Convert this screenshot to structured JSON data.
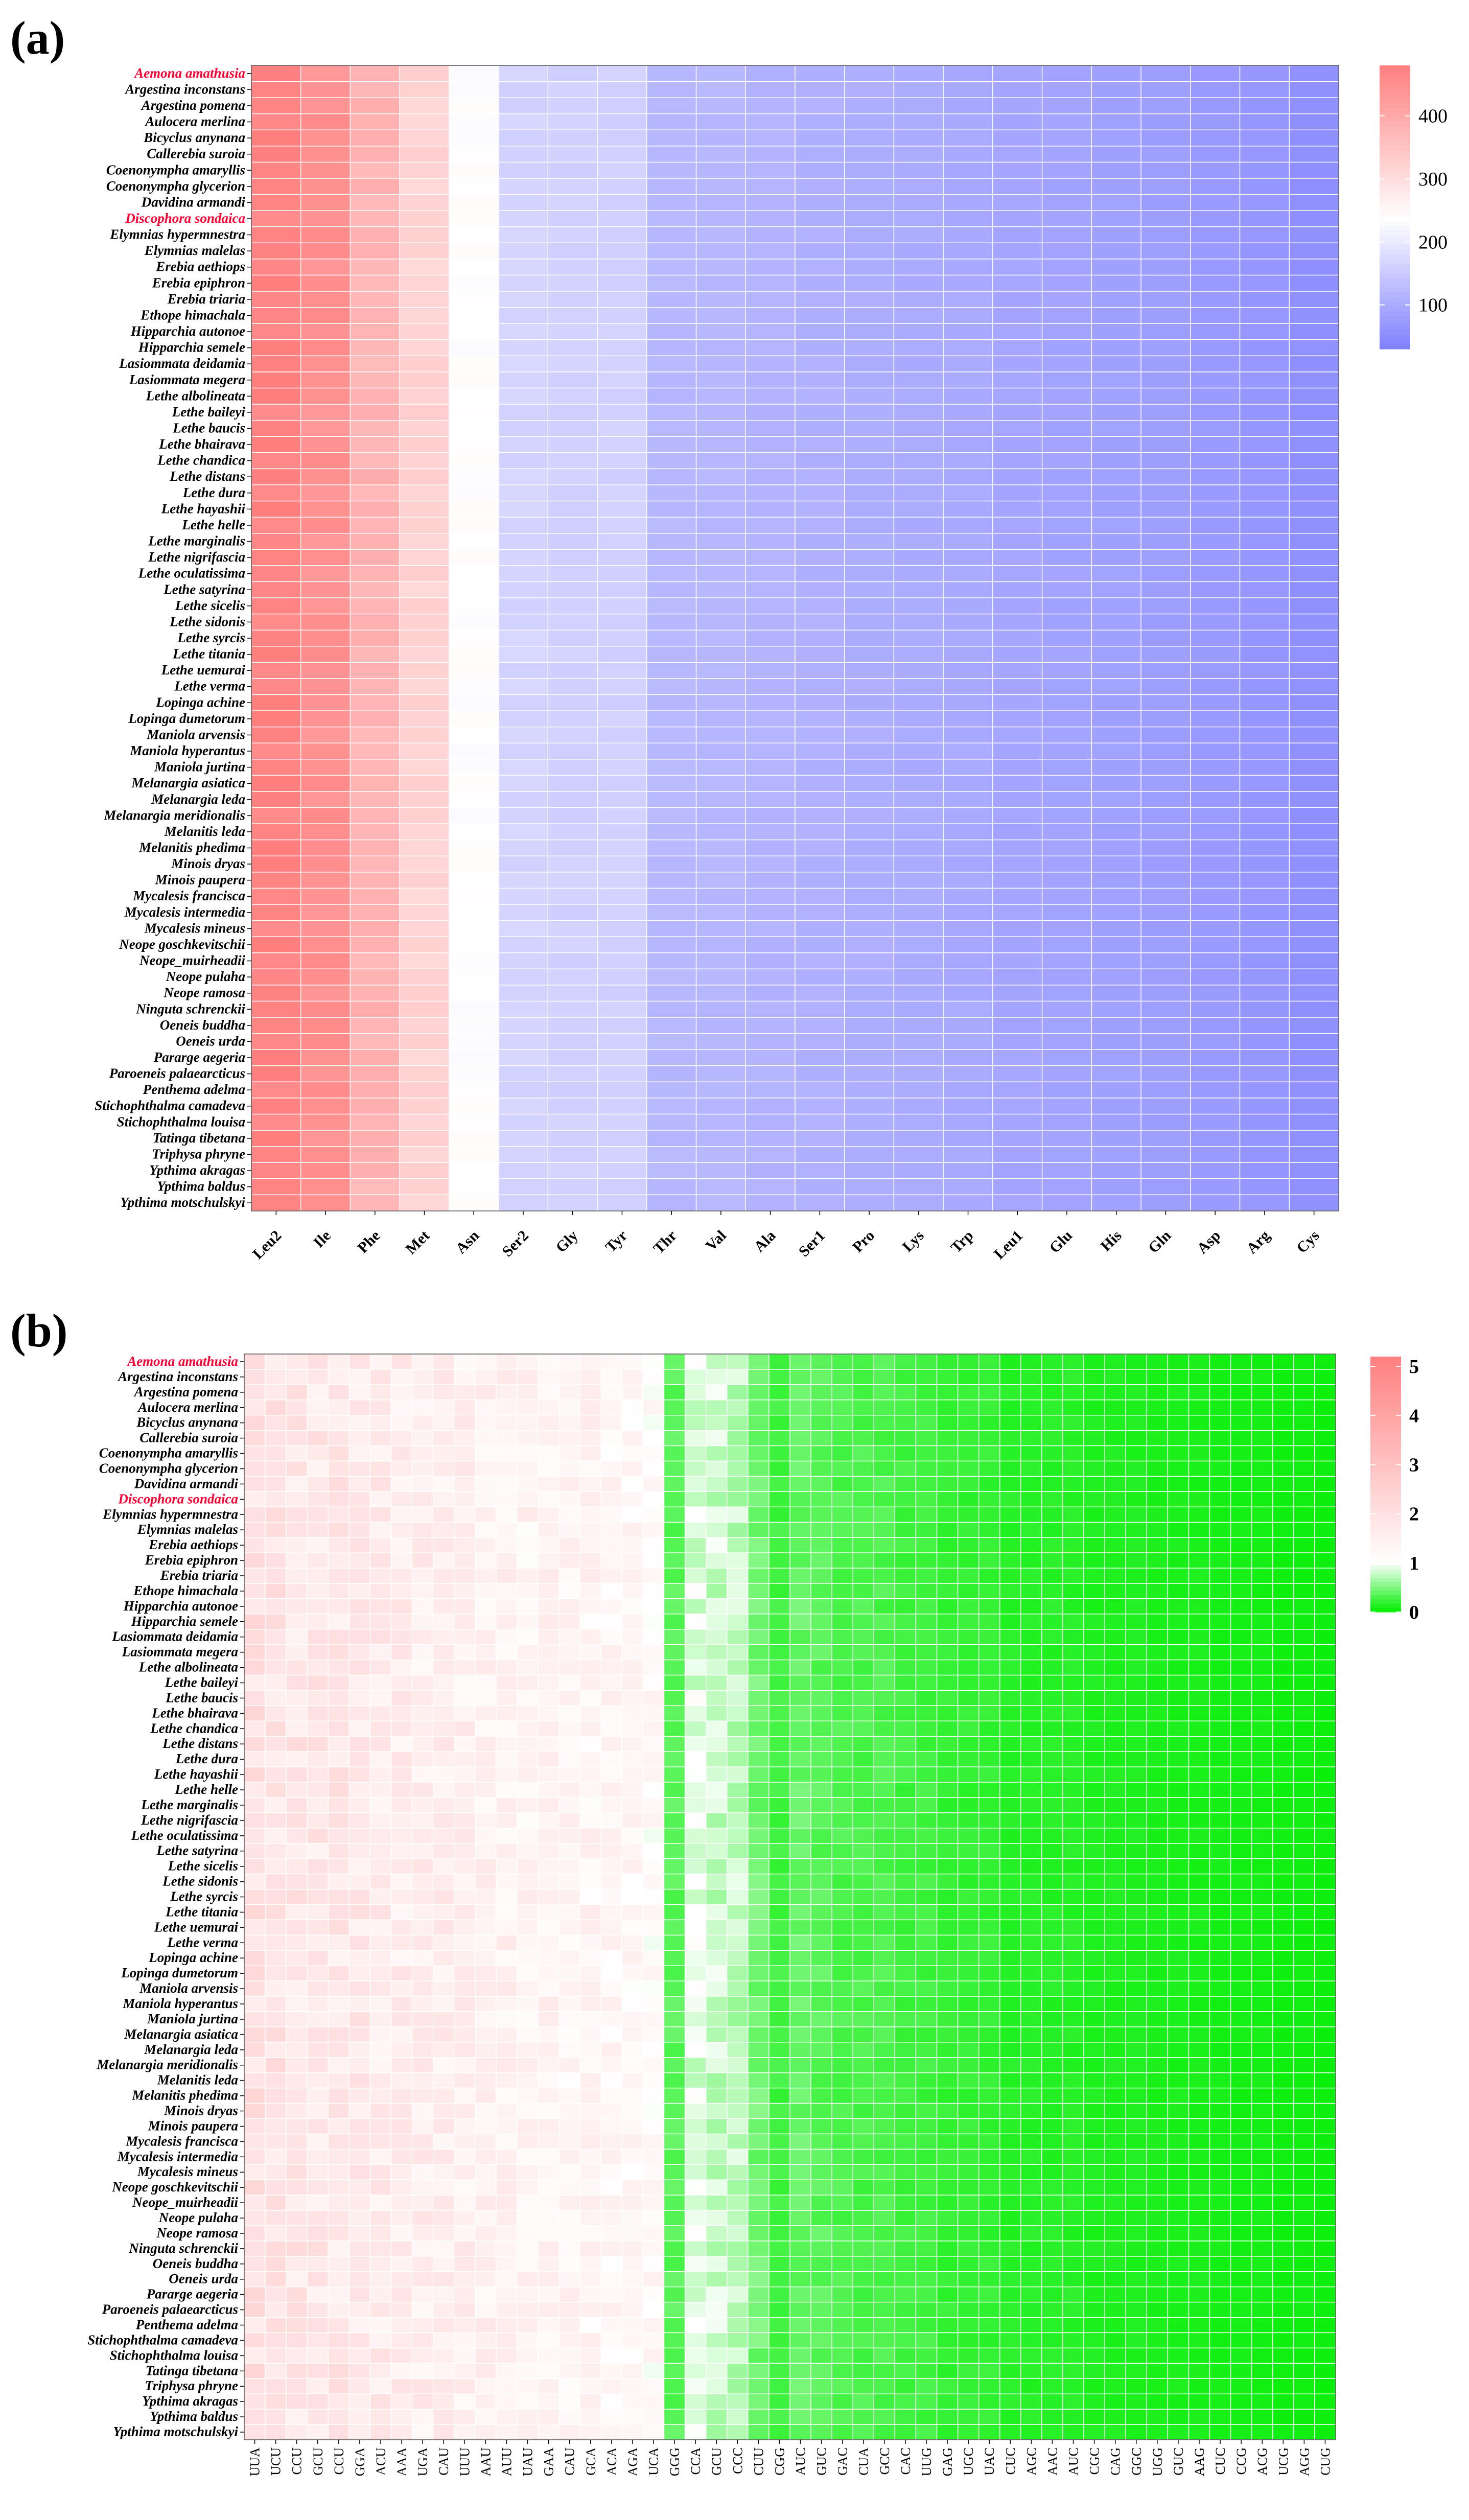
{
  "chart_data": [
    {
      "panel": "(a)",
      "type": "heatmap",
      "title": "",
      "xlabel": "",
      "ylabel": "",
      "columns": [
        "Leu2",
        "Ile",
        "Phe",
        "Met",
        "Asn",
        "Ser2",
        "Gly",
        "Tyr",
        "Thr",
        "Val",
        "Ala",
        "Ser1",
        "Pro",
        "Lys",
        "Trp",
        "Leu1",
        "Glu",
        "His",
        "Gln",
        "Asp",
        "Arg",
        "Cys"
      ],
      "highlighted_species": [
        "Aemona amathusia",
        "Discophora sondaica"
      ],
      "column_profile_values": [
        470,
        445,
        380,
        320,
        235,
        165,
        160,
        160,
        120,
        118,
        112,
        108,
        104,
        100,
        96,
        90,
        86,
        82,
        78,
        72,
        66,
        56
      ],
      "colorbar": {
        "ticks": [
          100,
          200,
          300,
          400
        ],
        "min": 30,
        "max": 480,
        "low_color": "#8080ff",
        "mid_color": "#ffffff",
        "high_color": "#ff7f7f"
      }
    },
    {
      "panel": "(b)",
      "type": "heatmap",
      "title": "",
      "xlabel": "",
      "ylabel": "",
      "columns": [
        "UUA",
        "UCU",
        "CCU",
        "GCU",
        "CCU",
        "GGA",
        "ACU",
        "AAA",
        "UGA",
        "CAU",
        "UUU",
        "AAU",
        "AUU",
        "UAU",
        "GAA",
        "CAU",
        "GCA",
        "ACA",
        "AGA",
        "UCA",
        "GGG",
        "CCA",
        "GCU",
        "CCC",
        "CUU",
        "CGG",
        "AUC",
        "GUC",
        "GAC",
        "CUA",
        "GCC",
        "CAC",
        "UUG",
        "GAG",
        "UGC",
        "UAC",
        "CUC",
        "AGC",
        "AAC",
        "AUC",
        "CGC",
        "CAG",
        "GGC",
        "UGG",
        "GUC",
        "AAG",
        "CUC",
        "CCG",
        "ACG",
        "UCG",
        "AGG",
        "CUG"
      ],
      "highlighted_species": [
        "Aemona amathusia",
        "Discophora sondaica"
      ],
      "column_profile_values": [
        1.95,
        1.85,
        1.8,
        1.75,
        1.75,
        1.7,
        1.65,
        1.6,
        1.55,
        1.55,
        1.5,
        1.45,
        1.45,
        1.4,
        1.4,
        1.35,
        1.35,
        1.3,
        1.25,
        1.2,
        0.35,
        0.9,
        0.8,
        0.75,
        0.45,
        0.25,
        0.4,
        0.35,
        0.3,
        0.3,
        0.3,
        0.25,
        0.25,
        0.2,
        0.2,
        0.2,
        0.15,
        0.15,
        0.15,
        0.15,
        0.12,
        0.12,
        0.12,
        0.1,
        0.1,
        0.1,
        0.08,
        0.08,
        0.08,
        0.06,
        0.06,
        0.05
      ],
      "colorbar": {
        "ticks": [
          0,
          1,
          2,
          3,
          4,
          5
        ],
        "min": 0,
        "max": 5.2,
        "low_color": "#00ee00",
        "mid_color": "#ffffff",
        "high_color": "#ff7f7f"
      }
    }
  ],
  "species": [
    "Aemona amathusia",
    "Argestina inconstans",
    "Argestina pomena",
    "Aulocera merlina",
    "Bicyclus anynana",
    "Callerebia suroia",
    "Coenonympha amaryllis",
    "Coenonympha glycerion",
    "Davidina armandi",
    "Discophora sondaica",
    "Elymnias hypermnestra",
    "Elymnias malelas",
    "Erebia aethiops",
    "Erebia epiphron",
    "Erebia triaria",
    "Ethope himachala",
    "Hipparchia autonoe",
    "Hipparchia semele",
    "Lasiommata deidamia",
    "Lasiommata megera",
    "Lethe albolineata",
    "Lethe baileyi",
    "Lethe baucis",
    "Lethe bhairava",
    "Lethe chandica",
    "Lethe distans",
    "Lethe dura",
    "Lethe hayashii",
    "Lethe helle",
    "Lethe marginalis",
    "Lethe nigrifascia",
    "Lethe oculatissima",
    "Lethe satyrina",
    "Lethe sicelis",
    "Lethe sidonis",
    "Lethe syrcis",
    "Lethe titania",
    "Lethe uemurai",
    "Lethe verma",
    "Lopinga achine",
    "Lopinga dumetorum",
    "Maniola arvensis",
    "Maniola hyperantus",
    "Maniola jurtina",
    "Melanargia asiatica",
    "Melanargia leda",
    "Melanargia meridionalis",
    "Melanitis leda",
    "Melanitis phedima",
    "Minois dryas",
    "Minois paupera",
    "Mycalesis francisca",
    "Mycalesis intermedia",
    "Mycalesis mineus",
    "Neope goschkevitschii",
    "Neope_muirheadii",
    "Neope pulaha",
    "Neope ramosa",
    "Ninguta schrenckii",
    "Oeneis buddha",
    "Oeneis urda",
    "Pararge aegeria",
    "Paroeneis palaearcticus",
    "Penthema adelma",
    "Stichophthalma camadeva",
    "Stichophthalma louisa",
    "Tatinga tibetana",
    "Triphysa phryne",
    "Ypthima akragas",
    "Ypthima baldus",
    "Ypthima motschulskyi"
  ],
  "colors": {
    "a_low": "#8080ff",
    "a_mid": "#ffffff",
    "a_high": "#ff7f7f",
    "b_low": "#00ee00",
    "b_mid": "#ffffff",
    "b_high": "#ff7f7f",
    "highlight_text": "#ff0033"
  }
}
